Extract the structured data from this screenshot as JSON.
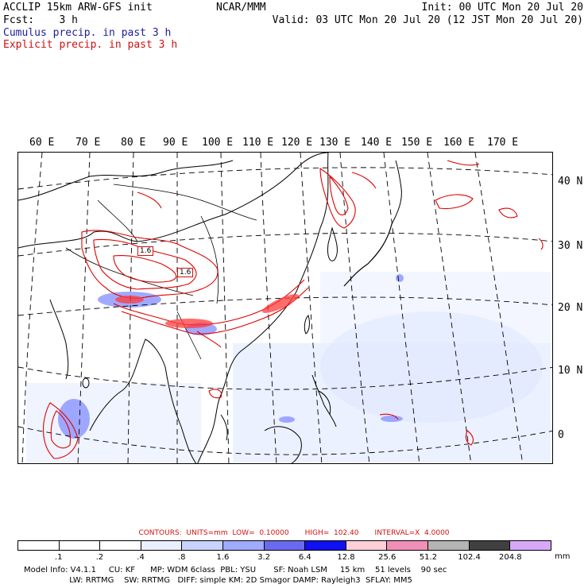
{
  "header": {
    "left_line1": "ACCLIP 15km ARW-GFS init",
    "left_line2": "Fcst:    3 h",
    "center": "NCAR/MMM",
    "init": "Init: 00 UTC Mon 20 Jul 20",
    "valid": "Valid: 03 UTC Mon 20 Jul 20 (12 JST Mon 20 Jul 20)",
    "cumulus": "Cumulus precip. in past 3 h",
    "explicit": "Explicit precip. in past 3 h"
  },
  "map": {
    "lon_labels": [
      "60 E",
      "70 E",
      "80 E",
      "90 E",
      "100 E",
      "110 E",
      "120 E",
      "130 E",
      "140 E",
      "150 E",
      "160 E",
      "170 E"
    ],
    "lat_labels": [
      "40 N",
      "30 N",
      "20 N",
      "10 N",
      "0"
    ],
    "contour_labels": [
      "1.6",
      "1.6"
    ]
  },
  "contours_info": {
    "text": "CONTOURS:  UNITS=mm  LOW=  0.10000       HIGH=  102.40       INTERVAL=X  4.0000"
  },
  "colorbar": {
    "ticks": [
      ".1",
      ".2",
      ".4",
      ".8",
      "1.6",
      "3.2",
      "6.4",
      "12.8",
      "25.6",
      "51.2",
      "102.4",
      "204.8"
    ],
    "units": "mm",
    "colors": [
      "#ffffff",
      "#ffffff",
      "#ffffff",
      "#eaf0ff",
      "#c8d4ff",
      "#a0aaff",
      "#6a6af0",
      "#1010f0",
      "#ffd0d8",
      "#f090b8",
      "#b4b4b4",
      "#404040",
      "#d8a8f8"
    ]
  },
  "footer": {
    "line1": "Model Info: V4.1.1     CU: KF      MP: WDM 6class  PBL: YSU       SF: Noah LSM     15 km    51 levels    90 sec",
    "line2": "                  LW: RRTMG    SW: RRTMG   DIFF: simple KM: 2D Smagor DAMP: Rayleigh3  SFLAY: MM5"
  }
}
